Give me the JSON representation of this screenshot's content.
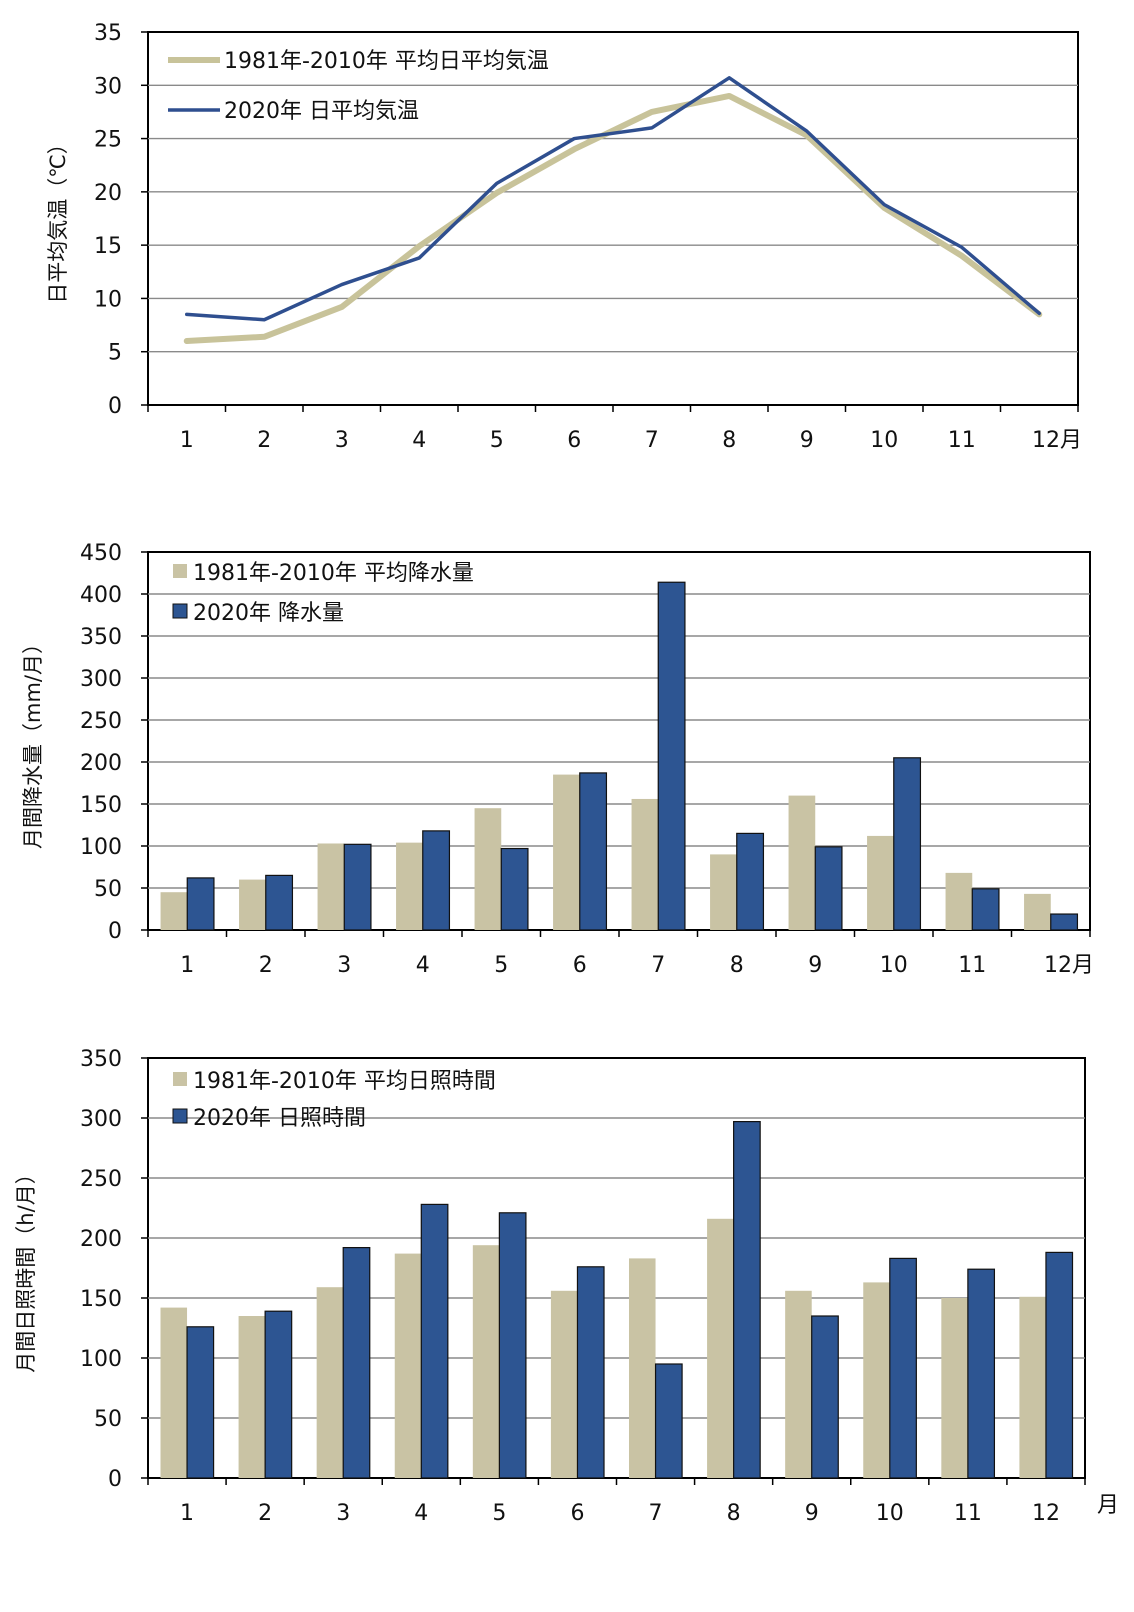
{
  "chart_data": [
    {
      "type": "line",
      "ylabel": "日平均気温（℃）",
      "ylim": [
        0,
        35
      ],
      "yticks": [
        0,
        5,
        10,
        15,
        20,
        25,
        30,
        35
      ],
      "categories": [
        "1",
        "2",
        "3",
        "4",
        "5",
        "6",
        "7",
        "8",
        "9",
        "10",
        "11",
        "12月"
      ],
      "grid": true,
      "legend_position": "top-left",
      "series": [
        {
          "name": "1981年-2010年 平均日平均気温",
          "color": "#c8c39a",
          "values": [
            6.0,
            6.4,
            9.2,
            14.9,
            19.9,
            24.0,
            27.5,
            29.0,
            25.3,
            18.5,
            14.0,
            8.5
          ]
        },
        {
          "name": "2020年 日平均気温",
          "color": "#2f4f8f",
          "values": [
            8.5,
            8.0,
            11.3,
            13.8,
            20.8,
            25.0,
            26.0,
            30.7,
            25.7,
            18.8,
            14.8,
            8.6
          ]
        }
      ]
    },
    {
      "type": "bar",
      "ylabel": "月間降水量（mm/月）",
      "ylim": [
        0,
        450
      ],
      "yticks": [
        0,
        50,
        100,
        150,
        200,
        250,
        300,
        350,
        400,
        450
      ],
      "categories": [
        "1",
        "2",
        "3",
        "4",
        "5",
        "6",
        "7",
        "8",
        "9",
        "10",
        "11",
        "12月"
      ],
      "grid": true,
      "legend_position": "top-left",
      "series": [
        {
          "name": "1981年-2010年 平均降水量",
          "color": "#c9c3a4",
          "values": [
            45,
            60,
            103,
            104,
            145,
            185,
            156,
            90,
            160,
            112,
            68,
            43
          ]
        },
        {
          "name": "2020年 降水量",
          "color": "#2d5592",
          "values": [
            62,
            65,
            102,
            118,
            97,
            187,
            414,
            115,
            99,
            205,
            49,
            19
          ]
        }
      ]
    },
    {
      "type": "bar",
      "ylabel": "月間日照時間（h/月）",
      "ylim": [
        0,
        350
      ],
      "yticks": [
        0,
        50,
        100,
        150,
        200,
        250,
        300,
        350
      ],
      "categories": [
        "1",
        "2",
        "3",
        "4",
        "5",
        "6",
        "7",
        "8",
        "9",
        "10",
        "11",
        "12"
      ],
      "unit_label": "月",
      "grid": true,
      "legend_position": "top-left",
      "series": [
        {
          "name": "1981年-2010年 平均日照時間",
          "color": "#c9c3a4",
          "values": [
            142,
            135,
            159,
            187,
            194,
            156,
            183,
            216,
            156,
            163,
            150,
            151
          ]
        },
        {
          "name": "2020年 日照時間",
          "color": "#2d5592",
          "values": [
            126,
            139,
            192,
            228,
            221,
            176,
            95,
            297,
            135,
            183,
            174,
            188
          ]
        }
      ]
    }
  ]
}
